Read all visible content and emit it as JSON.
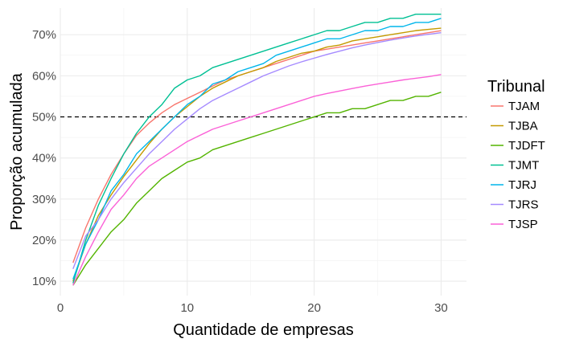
{
  "chart_data": {
    "type": "line",
    "title": "",
    "xlabel": "Quantidade de empresas",
    "ylabel": "Proporção acumulada",
    "xlim": [
      0,
      32
    ],
    "ylim": [
      0.065,
      0.765
    ],
    "x_ticks": [
      0,
      10,
      20,
      30
    ],
    "x_tick_labels": [
      "0",
      "10",
      "20",
      "30"
    ],
    "y_ticks": [
      0.1,
      0.2,
      0.3,
      0.4,
      0.5,
      0.6,
      0.7
    ],
    "y_tick_labels": [
      "10%",
      "20%",
      "30%",
      "40%",
      "50%",
      "60%",
      "70%"
    ],
    "grid": true,
    "legend_title": "Tribunal",
    "legend_position": "right",
    "reference_line": {
      "y": 0.5,
      "style": "dashed",
      "color": "#000000"
    },
    "x": [
      1,
      2,
      3,
      4,
      5,
      6,
      7,
      8,
      9,
      10,
      11,
      12,
      13,
      14,
      15,
      16,
      17,
      18,
      19,
      20,
      21,
      22,
      23,
      24,
      25,
      26,
      27,
      28,
      29,
      30
    ],
    "series": [
      {
        "name": "TJAM",
        "color": "#F8766D",
        "values": [
          0.145,
          0.23,
          0.3,
          0.36,
          0.41,
          0.455,
          0.485,
          0.51,
          0.53,
          0.545,
          0.56,
          0.575,
          0.59,
          0.6,
          0.61,
          0.62,
          0.63,
          0.64,
          0.65,
          0.66,
          0.665,
          0.67,
          0.675,
          0.68,
          0.685,
          0.69,
          0.695,
          0.7,
          0.705,
          0.71
        ]
      },
      {
        "name": "TJBA",
        "color": "#C49A00",
        "values": [
          0.1,
          0.19,
          0.26,
          0.31,
          0.355,
          0.395,
          0.435,
          0.47,
          0.5,
          0.525,
          0.55,
          0.57,
          0.585,
          0.6,
          0.61,
          0.62,
          0.635,
          0.645,
          0.655,
          0.66,
          0.67,
          0.675,
          0.685,
          0.69,
          0.695,
          0.7,
          0.705,
          0.71,
          0.713,
          0.716
        ]
      },
      {
        "name": "TJDFT",
        "color": "#53B400",
        "values": [
          0.09,
          0.14,
          0.18,
          0.22,
          0.25,
          0.29,
          0.32,
          0.35,
          0.37,
          0.39,
          0.4,
          0.42,
          0.43,
          0.44,
          0.45,
          0.46,
          0.47,
          0.48,
          0.49,
          0.5,
          0.51,
          0.51,
          0.52,
          0.52,
          0.53,
          0.54,
          0.54,
          0.55,
          0.55,
          0.56
        ]
      },
      {
        "name": "TJMT",
        "color": "#00C094",
        "values": [
          0.095,
          0.2,
          0.285,
          0.35,
          0.41,
          0.46,
          0.5,
          0.53,
          0.57,
          0.59,
          0.6,
          0.62,
          0.63,
          0.64,
          0.65,
          0.66,
          0.67,
          0.68,
          0.69,
          0.7,
          0.71,
          0.71,
          0.72,
          0.73,
          0.73,
          0.74,
          0.74,
          0.75,
          0.75,
          0.75
        ]
      },
      {
        "name": "TJRJ",
        "color": "#00B6EB",
        "values": [
          0.105,
          0.19,
          0.25,
          0.32,
          0.36,
          0.41,
          0.44,
          0.47,
          0.5,
          0.53,
          0.55,
          0.58,
          0.59,
          0.61,
          0.62,
          0.63,
          0.65,
          0.66,
          0.67,
          0.68,
          0.69,
          0.69,
          0.7,
          0.71,
          0.71,
          0.72,
          0.72,
          0.73,
          0.73,
          0.74
        ]
      },
      {
        "name": "TJRS",
        "color": "#A58AFF",
        "values": [
          0.13,
          0.21,
          0.25,
          0.3,
          0.34,
          0.375,
          0.41,
          0.44,
          0.47,
          0.495,
          0.52,
          0.54,
          0.555,
          0.57,
          0.585,
          0.6,
          0.612,
          0.624,
          0.634,
          0.643,
          0.652,
          0.66,
          0.668,
          0.675,
          0.681,
          0.687,
          0.692,
          0.697,
          0.701,
          0.705
        ]
      },
      {
        "name": "TJSP",
        "color": "#FB61D7",
        "values": [
          0.09,
          0.16,
          0.22,
          0.275,
          0.31,
          0.35,
          0.38,
          0.4,
          0.42,
          0.44,
          0.455,
          0.47,
          0.48,
          0.49,
          0.5,
          0.51,
          0.52,
          0.53,
          0.54,
          0.55,
          0.557,
          0.563,
          0.569,
          0.575,
          0.58,
          0.585,
          0.59,
          0.594,
          0.598,
          0.603
        ]
      }
    ]
  }
}
